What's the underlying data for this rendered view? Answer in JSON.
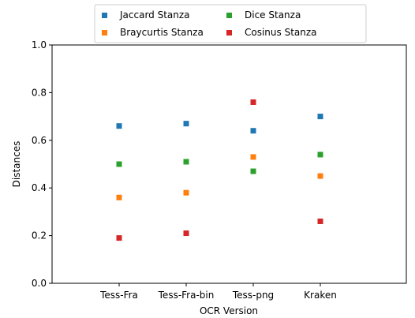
{
  "chart_data": {
    "type": "scatter",
    "categories": [
      "Tess-Fra",
      "Tess-Fra-bin",
      "Tess-png",
      "Kraken"
    ],
    "series": [
      {
        "name": "Jaccard Stanza",
        "color": "#1f77b4",
        "values": [
          0.66,
          0.67,
          0.64,
          0.7
        ]
      },
      {
        "name": "Braycurtis Stanza",
        "color": "#ff7f0e",
        "values": [
          0.36,
          0.38,
          0.53,
          0.45
        ]
      },
      {
        "name": "Dice Stanza",
        "color": "#2ca02c",
        "values": [
          0.5,
          0.51,
          0.47,
          0.54
        ]
      },
      {
        "name": "Cosinus Stanza",
        "color": "#d62728",
        "values": [
          0.19,
          0.21,
          0.76,
          0.26
        ]
      }
    ],
    "xlabel": "OCR Version",
    "ylabel": "Distances",
    "ylim": [
      0,
      1.0
    ],
    "yticks": [
      "0.0",
      "0.2",
      "0.4",
      "0.6",
      "0.8",
      "1.0"
    ],
    "legend": "top-center, outside, 2 columns",
    "grid": false
  }
}
